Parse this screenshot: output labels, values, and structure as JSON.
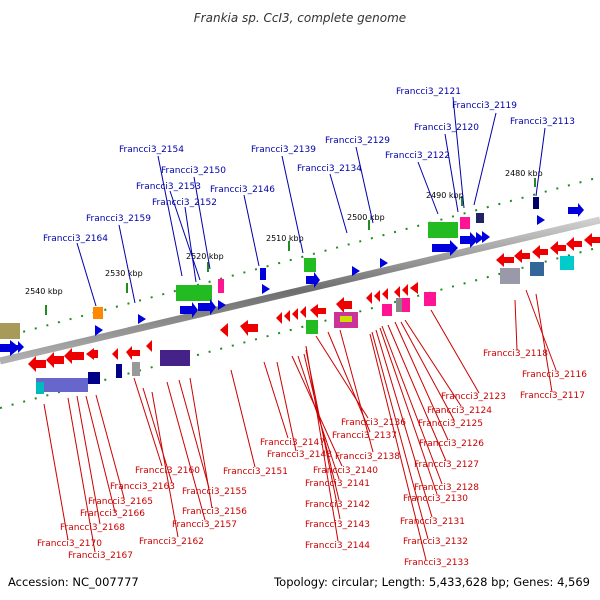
{
  "title": "Frankia sp. CcI3, complete genome",
  "footer": {
    "accession": "Accession: NC_007777",
    "stats": "Topology: circular; Length: 5,433,628 bp; Genes: 4,569"
  },
  "scale_labels": [
    "2480 kbp",
    "2490 kbp",
    "2500 kbp",
    "2510 kbp",
    "2520 kbp",
    "2530 kbp",
    "2540 kbp"
  ],
  "top_labels": [
    "Francci3_2121",
    "Francci3_2119",
    "Francci3_2113",
    "Francci3_2120",
    "Francci3_2129",
    "Francci3_2154",
    "Francci3_2139",
    "Francci3_2122",
    "Francci3_2150",
    "Francci3_2134",
    "Francci3_2153",
    "Francci3_2146",
    "Francci3_2152",
    "Francci3_2159",
    "Francci3_2164"
  ],
  "bottom_labels": [
    "Francci3_2118",
    "Francci3_2116",
    "Francci3_2123",
    "Francci3_2117",
    "Francci3_2124",
    "Francci3_2136",
    "Francci3_2125",
    "Francci3_2137",
    "Francci3_2147",
    "Francci3_2126",
    "Francci3_2148",
    "Francci3_2138",
    "Francci3_2160",
    "Francci3_2140",
    "Francci3_2151",
    "Francci3_2127",
    "Francci3_2141",
    "Francci3_2163",
    "Francci3_2128",
    "Francci3_2155",
    "Francci3_2165",
    "Francci3_2130",
    "Francci3_2142",
    "Francci3_2166",
    "Francci3_2156",
    "Francci3_2157",
    "Francci3_2168",
    "Francci3_2131",
    "Francci3_2143",
    "Francci3_2162",
    "Francci3_2170",
    "Francci3_2132",
    "Francci3_2144",
    "Francci3_2167",
    "Francci3_2133"
  ],
  "colors": {
    "forward_gene": "#0000dd",
    "reverse_gene": "#ee0000",
    "backbone": "#888888",
    "tick": "#228b22",
    "top_leader": "#0000aa",
    "bottom_leader": "#cc0000"
  }
}
